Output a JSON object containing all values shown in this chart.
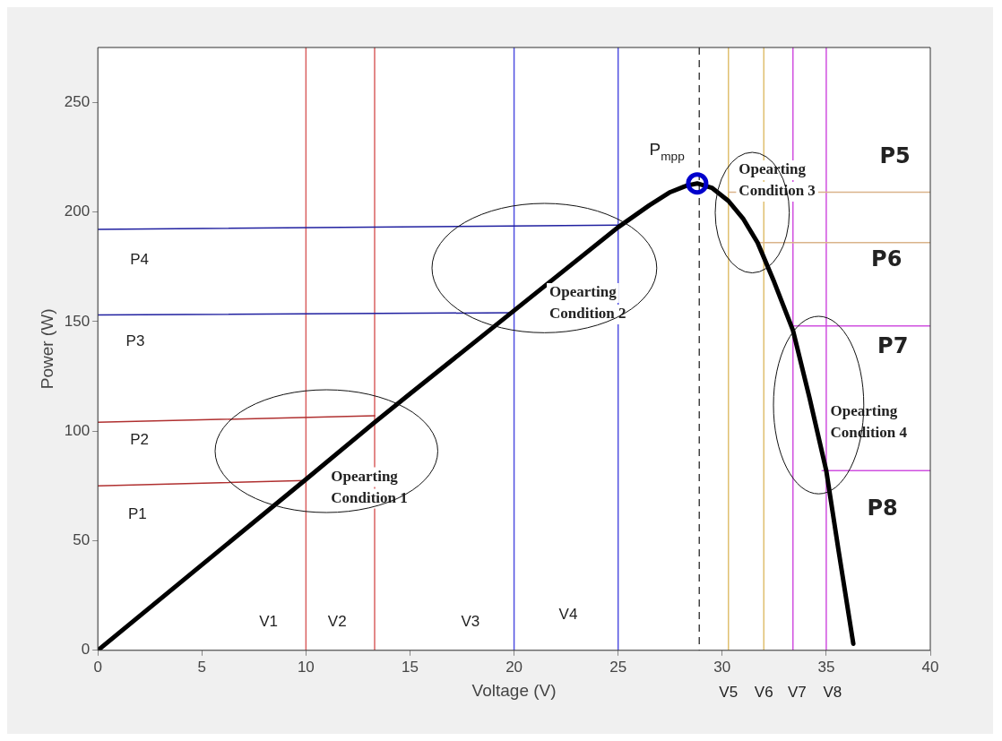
{
  "chart_data": {
    "type": "line",
    "xlabel": "Voltage (V)",
    "ylabel": "Power (W)",
    "xlim": [
      0,
      40
    ],
    "ylim": [
      0,
      275
    ],
    "xticks": [
      0,
      5,
      10,
      15,
      20,
      25,
      30,
      35,
      40
    ],
    "yticks": [
      0,
      50,
      100,
      150,
      200,
      250
    ],
    "grid": false,
    "series": [
      {
        "color": "#000000",
        "x": [
          0,
          5,
          10,
          13.3,
          15,
          20,
          25,
          26.5,
          27.5,
          28.3,
          28.8,
          29.5,
          30.3,
          31,
          31.7,
          32.5,
          33.4,
          34.2,
          35,
          35.6,
          36.3
        ],
        "values": [
          0,
          39,
          78,
          104,
          117,
          155,
          193,
          203,
          209,
          212,
          213,
          211,
          205,
          197,
          186,
          168,
          146,
          115,
          82,
          45,
          3
        ]
      },
      {
        "type": "scatter",
        "color": "#0000cc",
        "x": [
          28.8
        ],
        "values": [
          213
        ]
      },
      {
        "color": "#b03030",
        "x": [
          0,
          10
        ],
        "values": [
          75,
          77.5
        ]
      },
      {
        "color": "#b03030",
        "x": [
          0,
          13.3
        ],
        "values": [
          104,
          107
        ]
      },
      {
        "color": "#2020a0",
        "x": [
          0,
          20
        ],
        "values": [
          153,
          154
        ]
      },
      {
        "color": "#2020a0",
        "x": [
          0,
          25
        ],
        "values": [
          192,
          194
        ]
      },
      {
        "color": "#d9b48a",
        "x": [
          30.3,
          40
        ],
        "values": [
          209,
          209
        ]
      },
      {
        "color": "#d9b48a",
        "x": [
          31.8,
          40
        ],
        "values": [
          186,
          186
        ]
      },
      {
        "color": "#d050e0",
        "x": [
          33.4,
          40
        ],
        "values": [
          148,
          148
        ]
      },
      {
        "color": "#d050e0",
        "x": [
          34.8,
          40
        ],
        "values": [
          82,
          82
        ]
      }
    ],
    "ref_lines": [
      {
        "axis": "x",
        "value": 10,
        "color": "#d96060"
      },
      {
        "axis": "x",
        "value": 13.3,
        "color": "#d96060"
      },
      {
        "axis": "x",
        "value": 20,
        "color": "#5050e0"
      },
      {
        "axis": "x",
        "value": 25,
        "color": "#5050e0"
      },
      {
        "axis": "x",
        "value": 28.9,
        "color": "#444444",
        "line_style": "dashed"
      },
      {
        "axis": "x",
        "value": 30.3,
        "color": "#e0c070"
      },
      {
        "axis": "x",
        "value": 32,
        "color": "#e0c070"
      },
      {
        "axis": "x",
        "value": 33.4,
        "color": "#d050e0"
      },
      {
        "axis": "x",
        "value": 35,
        "color": "#d050e0"
      }
    ],
    "annotations": [
      "P1",
      "P2",
      "P3",
      "P4",
      "V1",
      "V2",
      "V3",
      "V4",
      "V5",
      "V6",
      "V7",
      "V8",
      "P5",
      "P6",
      "P7",
      "P8",
      "Opearting\nCondition 1",
      "Opearting\nCondition 2",
      "Opearting\nCondition 3",
      "Opearting\nCondition 4",
      "P$_{mpp}$"
    ]
  }
}
